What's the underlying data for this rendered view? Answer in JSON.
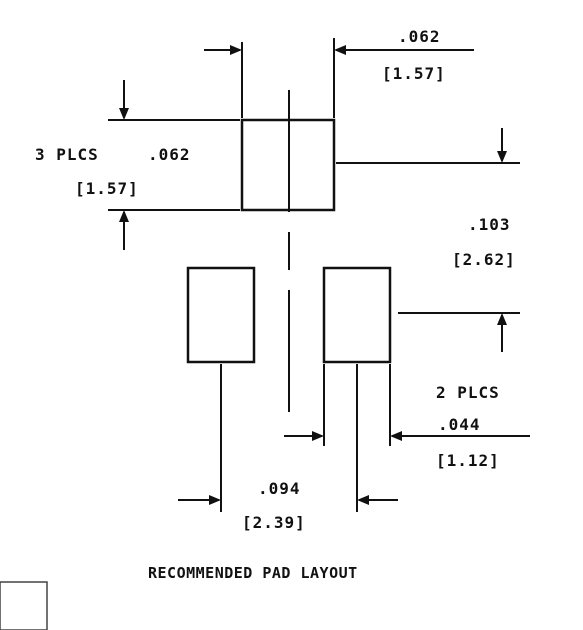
{
  "dims": {
    "top_width": {
      "inch": ".062",
      "mm": "[1.57]"
    },
    "height": {
      "prefix": "3 PLCS",
      "inch": ".062",
      "mm": "[1.57]"
    },
    "gap": {
      "inch": ".103",
      "mm": "[2.62]"
    },
    "pad_width": {
      "prefix": "2 PLCS",
      "inch": ".044",
      "mm": "[1.12]"
    },
    "pitch": {
      "inch": ".094",
      "mm": "[2.39]"
    }
  },
  "caption": "RECOMMENDED PAD LAYOUT"
}
